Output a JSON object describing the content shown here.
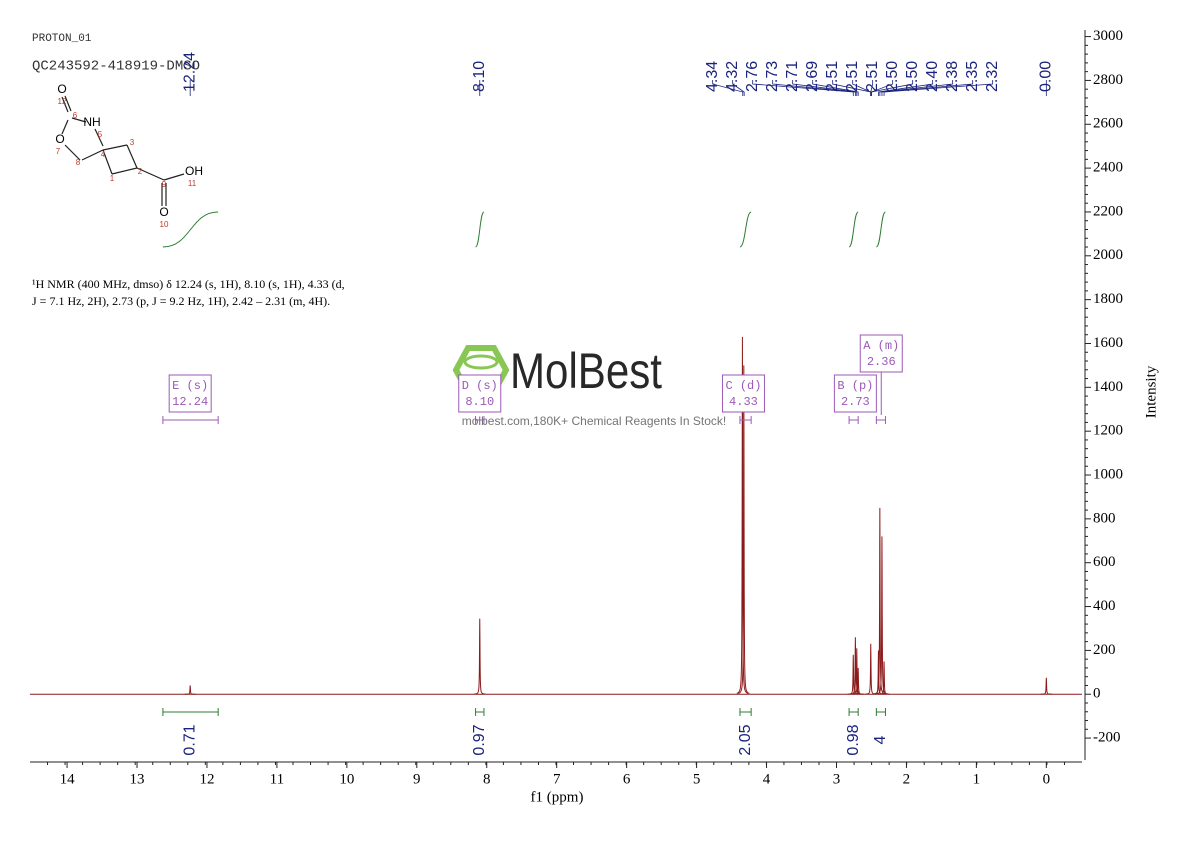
{
  "header": {
    "experiment": "PROTON_01",
    "sample": "QC243592-418919-DMSO"
  },
  "molecule": {
    "atoms": [
      "O",
      "12",
      "6",
      "NH",
      "5",
      "O",
      "7",
      "8",
      "4",
      "3",
      "1",
      "2",
      "9",
      "OH",
      "11",
      "O",
      "10"
    ]
  },
  "description": [
    "¹H NMR (400 MHz, dmso) δ 12.24 (s, 1H), 8.10 (s, 1H), 4.33 (d,",
    "J = 7.1 Hz, 2H), 2.73 (p, J = 9.2 Hz, 1H), 2.42 – 2.31 (m, 4H)."
  ],
  "watermark": {
    "brand": "MolBest",
    "tagline": "molbest.com,180K+ Chemical Reagents In Stock!"
  },
  "chart_data": {
    "type": "spectrum",
    "xlabel": "f1 (ppm)",
    "ylabel": "Intensity",
    "xlim": [
      14.53,
      -0.51
    ],
    "ylim": [
      -300,
      3030
    ],
    "xticks": [
      14,
      13,
      12,
      11,
      10,
      9,
      8,
      7,
      6,
      5,
      4,
      3,
      2,
      1,
      0
    ],
    "yticks": [
      -200,
      0,
      200,
      400,
      600,
      800,
      1000,
      1200,
      1400,
      1600,
      1800,
      2000,
      2200,
      2400,
      2600,
      2800,
      3000
    ],
    "color": "#8b1a1a",
    "integral_color": "#2e7d32",
    "label_color": "#1a237e",
    "multiplet_color": "#9b59b6",
    "peaks": {
      "ppm": [
        12.24,
        8.1,
        4.345,
        4.325,
        2.76,
        2.73,
        2.71,
        2.69,
        2.51,
        2.4,
        2.38,
        2.35,
        2.32,
        0.0
      ],
      "intensity": [
        40,
        345,
        1630,
        1500,
        180,
        260,
        210,
        120,
        230,
        200,
        850,
        720,
        150,
        75
      ]
    },
    "peak_labels": [
      {
        "value": 12.24,
        "label": "12.24"
      },
      {
        "value": 8.1,
        "label": "8.10"
      },
      {
        "value": 4.34,
        "label": "4.34"
      },
      {
        "value": 4.32,
        "label": "4.32"
      },
      {
        "value": 2.76,
        "label": "2.76"
      },
      {
        "value": 2.73,
        "label": "2.73"
      },
      {
        "value": 2.71,
        "label": "2.71"
      },
      {
        "value": 2.69,
        "label": "2.69"
      },
      {
        "value": 2.51,
        "label": "2.51"
      },
      {
        "value": 2.51,
        "label": "2.51"
      },
      {
        "value": 2.51,
        "label": "2.51"
      },
      {
        "value": 2.5,
        "label": "2.50"
      },
      {
        "value": 2.5,
        "label": "2.50"
      },
      {
        "value": 2.4,
        "label": "2.40"
      },
      {
        "value": 2.38,
        "label": "2.38"
      },
      {
        "value": 2.35,
        "label": "2.35"
      },
      {
        "value": 2.32,
        "label": "2.32"
      },
      {
        "value": 0,
        "label": "0.00"
      }
    ],
    "multiplets": [
      {
        "name": "E (s)",
        "shift": 12.24,
        "range": [
          12.63,
          11.84
        ],
        "integral": 0.71
      },
      {
        "name": "D (s)",
        "shift": {
          "value": 8.1,
          "label": "8.10"
        },
        "range": [
          8.16,
          8.04
        ],
        "integral": 0.97
      },
      {
        "name": "C (d)",
        "shift": 4.33,
        "range": [
          4.38,
          4.22
        ],
        "integral": 2.05
      },
      {
        "name": "B (p)",
        "shift": 2.73,
        "range": [
          2.82,
          2.69
        ],
        "integral": 0.98
      },
      {
        "name": "A (m)",
        "shift": 2.36,
        "range": [
          2.43,
          2.3
        ],
        "integral": 4.0
      }
    ]
  }
}
